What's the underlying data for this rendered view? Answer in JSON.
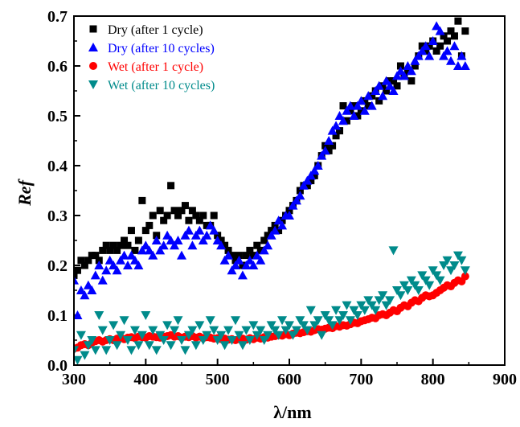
{
  "chart_data": {
    "type": "scatter",
    "xlabel": "λ/nm",
    "ylabel": "Ref",
    "xlim": [
      300,
      900
    ],
    "ylim": [
      0.0,
      0.7
    ],
    "x_ticks": [
      300,
      400,
      500,
      600,
      700,
      800,
      900
    ],
    "x_tick_labels": [
      "300",
      "400",
      "500",
      "600",
      "700",
      "800",
      "900"
    ],
    "y_ticks": [
      0.0,
      0.1,
      0.2,
      0.3,
      0.4,
      0.5,
      0.6,
      0.7
    ],
    "y_tick_labels": [
      "0.0",
      "0.1",
      "0.2",
      "0.3",
      "0.4",
      "0.5",
      "0.6",
      "0.7"
    ],
    "grid": false,
    "legend_position": "top-left",
    "series": [
      {
        "name": "Dry (after 1 cycle)",
        "marker": "square",
        "color": "#000000",
        "x": [
          300,
          305,
          310,
          315,
          320,
          325,
          330,
          335,
          340,
          345,
          350,
          355,
          360,
          365,
          370,
          375,
          380,
          385,
          390,
          395,
          400,
          405,
          410,
          415,
          420,
          425,
          430,
          435,
          440,
          445,
          450,
          455,
          460,
          465,
          470,
          475,
          480,
          485,
          490,
          495,
          500,
          505,
          510,
          515,
          520,
          525,
          530,
          535,
          540,
          545,
          550,
          555,
          560,
          565,
          570,
          575,
          580,
          585,
          590,
          595,
          600,
          605,
          610,
          615,
          620,
          625,
          630,
          635,
          640,
          645,
          650,
          655,
          660,
          665,
          670,
          675,
          680,
          685,
          690,
          695,
          700,
          705,
          710,
          715,
          720,
          725,
          730,
          735,
          740,
          745,
          750,
          755,
          760,
          765,
          770,
          775,
          780,
          785,
          790,
          795,
          800,
          805,
          810,
          815,
          820,
          825,
          830,
          835,
          840,
          845
        ],
        "y": [
          0.18,
          0.19,
          0.21,
          0.2,
          0.21,
          0.22,
          0.22,
          0.21,
          0.23,
          0.24,
          0.23,
          0.24,
          0.23,
          0.24,
          0.25,
          0.24,
          0.27,
          0.23,
          0.25,
          0.33,
          0.27,
          0.28,
          0.3,
          0.26,
          0.31,
          0.29,
          0.3,
          0.36,
          0.31,
          0.3,
          0.31,
          0.32,
          0.29,
          0.31,
          0.3,
          0.29,
          0.3,
          0.28,
          0.28,
          0.3,
          0.26,
          0.25,
          0.24,
          0.23,
          0.22,
          0.21,
          0.22,
          0.2,
          0.22,
          0.23,
          0.22,
          0.24,
          0.23,
          0.25,
          0.26,
          0.27,
          0.28,
          0.27,
          0.29,
          0.3,
          0.31,
          0.32,
          0.33,
          0.35,
          0.36,
          0.36,
          0.37,
          0.38,
          0.4,
          0.42,
          0.44,
          0.43,
          0.44,
          0.46,
          0.47,
          0.52,
          0.49,
          0.51,
          0.52,
          0.5,
          0.51,
          0.53,
          0.52,
          0.54,
          0.55,
          0.53,
          0.56,
          0.55,
          0.57,
          0.57,
          0.56,
          0.6,
          0.58,
          0.59,
          0.57,
          0.6,
          0.62,
          0.64,
          0.63,
          0.64,
          0.65,
          0.63,
          0.64,
          0.66,
          0.65,
          0.67,
          0.66,
          0.69,
          0.62,
          0.67
        ]
      },
      {
        "name": "Dry (after 10 cycles)",
        "marker": "triangle-up",
        "color": "#0000ff",
        "x": [
          300,
          305,
          310,
          315,
          320,
          325,
          330,
          335,
          340,
          345,
          350,
          355,
          360,
          365,
          370,
          375,
          380,
          385,
          390,
          395,
          400,
          405,
          410,
          415,
          420,
          425,
          430,
          435,
          440,
          445,
          450,
          455,
          460,
          465,
          470,
          475,
          480,
          485,
          490,
          495,
          500,
          505,
          510,
          515,
          520,
          525,
          530,
          535,
          540,
          545,
          550,
          555,
          560,
          565,
          570,
          575,
          580,
          585,
          590,
          595,
          600,
          605,
          610,
          615,
          620,
          625,
          630,
          635,
          640,
          645,
          650,
          655,
          660,
          665,
          670,
          675,
          680,
          685,
          690,
          695,
          700,
          705,
          710,
          715,
          720,
          725,
          730,
          735,
          740,
          745,
          750,
          755,
          760,
          765,
          770,
          775,
          780,
          785,
          790,
          795,
          800,
          805,
          810,
          815,
          820,
          825,
          830,
          835,
          840,
          845
        ],
        "y": [
          0.17,
          0.1,
          0.15,
          0.14,
          0.16,
          0.15,
          0.18,
          0.2,
          0.17,
          0.19,
          0.21,
          0.2,
          0.19,
          0.21,
          0.22,
          0.2,
          0.22,
          0.21,
          0.2,
          0.23,
          0.24,
          0.23,
          0.22,
          0.25,
          0.23,
          0.24,
          0.26,
          0.25,
          0.24,
          0.25,
          0.22,
          0.26,
          0.27,
          0.24,
          0.26,
          0.27,
          0.25,
          0.26,
          0.28,
          0.27,
          0.25,
          0.24,
          0.21,
          0.22,
          0.19,
          0.2,
          0.21,
          0.18,
          0.2,
          0.21,
          0.2,
          0.22,
          0.21,
          0.23,
          0.24,
          0.26,
          0.27,
          0.29,
          0.28,
          0.3,
          0.3,
          0.32,
          0.33,
          0.34,
          0.36,
          0.37,
          0.38,
          0.39,
          0.4,
          0.42,
          0.43,
          0.45,
          0.47,
          0.48,
          0.5,
          0.49,
          0.51,
          0.52,
          0.5,
          0.52,
          0.53,
          0.51,
          0.54,
          0.52,
          0.55,
          0.56,
          0.54,
          0.57,
          0.56,
          0.55,
          0.58,
          0.59,
          0.58,
          0.6,
          0.59,
          0.61,
          0.62,
          0.63,
          0.64,
          0.62,
          0.65,
          0.68,
          0.67,
          0.62,
          0.63,
          0.61,
          0.64,
          0.6,
          0.62,
          0.6
        ]
      },
      {
        "name": "Wet (after 1 cycle)",
        "marker": "circle",
        "color": "#ff0000",
        "x": [
          300,
          305,
          310,
          315,
          320,
          325,
          330,
          335,
          340,
          345,
          350,
          355,
          360,
          365,
          370,
          375,
          380,
          385,
          390,
          395,
          400,
          405,
          410,
          415,
          420,
          425,
          430,
          435,
          440,
          445,
          450,
          455,
          460,
          465,
          470,
          475,
          480,
          485,
          490,
          495,
          500,
          505,
          510,
          515,
          520,
          525,
          530,
          535,
          540,
          545,
          550,
          555,
          560,
          565,
          570,
          575,
          580,
          585,
          590,
          595,
          600,
          605,
          610,
          615,
          620,
          625,
          630,
          635,
          640,
          645,
          650,
          655,
          660,
          665,
          670,
          675,
          680,
          685,
          690,
          695,
          700,
          705,
          710,
          715,
          720,
          725,
          730,
          735,
          740,
          745,
          750,
          755,
          760,
          765,
          770,
          775,
          780,
          785,
          790,
          795,
          800,
          805,
          810,
          815,
          820,
          825,
          830,
          835,
          840,
          845
        ],
        "y": [
          0.033,
          0.035,
          0.04,
          0.042,
          0.04,
          0.045,
          0.048,
          0.05,
          0.047,
          0.05,
          0.052,
          0.05,
          0.053,
          0.055,
          0.052,
          0.055,
          0.056,
          0.054,
          0.057,
          0.056,
          0.055,
          0.058,
          0.057,
          0.056,
          0.055,
          0.057,
          0.058,
          0.06,
          0.057,
          0.058,
          0.055,
          0.057,
          0.056,
          0.058,
          0.055,
          0.057,
          0.054,
          0.056,
          0.055,
          0.053,
          0.054,
          0.052,
          0.053,
          0.051,
          0.052,
          0.05,
          0.052,
          0.053,
          0.051,
          0.054,
          0.052,
          0.055,
          0.053,
          0.056,
          0.055,
          0.057,
          0.058,
          0.06,
          0.059,
          0.062,
          0.06,
          0.063,
          0.065,
          0.064,
          0.066,
          0.068,
          0.067,
          0.07,
          0.072,
          0.071,
          0.073,
          0.075,
          0.074,
          0.078,
          0.077,
          0.08,
          0.079,
          0.082,
          0.085,
          0.084,
          0.088,
          0.09,
          0.092,
          0.095,
          0.094,
          0.1,
          0.102,
          0.1,
          0.105,
          0.11,
          0.108,
          0.115,
          0.12,
          0.118,
          0.125,
          0.13,
          0.128,
          0.135,
          0.14,
          0.138,
          0.14,
          0.145,
          0.15,
          0.155,
          0.16,
          0.158,
          0.165,
          0.17,
          0.168,
          0.178
        ]
      },
      {
        "name": "Wet (after 10 cycles)",
        "marker": "triangle-down",
        "color": "#008b8b",
        "x": [
          300,
          305,
          310,
          315,
          320,
          325,
          330,
          335,
          340,
          345,
          350,
          355,
          360,
          365,
          370,
          375,
          380,
          385,
          390,
          395,
          400,
          405,
          410,
          415,
          420,
          425,
          430,
          435,
          440,
          445,
          450,
          455,
          460,
          465,
          470,
          475,
          480,
          485,
          490,
          495,
          500,
          505,
          510,
          515,
          520,
          525,
          530,
          535,
          540,
          545,
          550,
          555,
          560,
          565,
          570,
          575,
          580,
          585,
          590,
          595,
          600,
          605,
          610,
          615,
          620,
          625,
          630,
          635,
          640,
          645,
          650,
          655,
          660,
          665,
          670,
          675,
          680,
          685,
          690,
          695,
          700,
          705,
          710,
          715,
          720,
          725,
          730,
          735,
          740,
          745,
          750,
          755,
          760,
          765,
          770,
          775,
          780,
          785,
          790,
          795,
          800,
          805,
          810,
          815,
          820,
          825,
          830,
          835,
          840,
          845
        ],
        "y": [
          0.03,
          0.01,
          0.06,
          0.02,
          0.04,
          0.05,
          0.03,
          0.1,
          0.07,
          0.03,
          0.05,
          0.08,
          0.04,
          0.06,
          0.09,
          0.05,
          0.03,
          0.07,
          0.04,
          0.06,
          0.1,
          0.04,
          0.07,
          0.03,
          0.06,
          0.05,
          0.08,
          0.04,
          0.07,
          0.09,
          0.05,
          0.03,
          0.06,
          0.07,
          0.04,
          0.08,
          0.05,
          0.06,
          0.09,
          0.07,
          0.05,
          0.06,
          0.04,
          0.07,
          0.05,
          0.09,
          0.06,
          0.04,
          0.07,
          0.05,
          0.08,
          0.06,
          0.07,
          0.05,
          0.06,
          0.08,
          0.07,
          0.06,
          0.09,
          0.07,
          0.08,
          0.06,
          0.07,
          0.09,
          0.08,
          0.07,
          0.11,
          0.08,
          0.09,
          0.06,
          0.1,
          0.09,
          0.08,
          0.11,
          0.09,
          0.1,
          0.12,
          0.09,
          0.11,
          0.1,
          0.12,
          0.11,
          0.13,
          0.12,
          0.11,
          0.13,
          0.14,
          0.12,
          0.13,
          0.23,
          0.15,
          0.14,
          0.16,
          0.15,
          0.17,
          0.16,
          0.15,
          0.18,
          0.17,
          0.16,
          0.19,
          0.18,
          0.17,
          0.2,
          0.21,
          0.19,
          0.2,
          0.22,
          0.21,
          0.19
        ]
      }
    ]
  }
}
